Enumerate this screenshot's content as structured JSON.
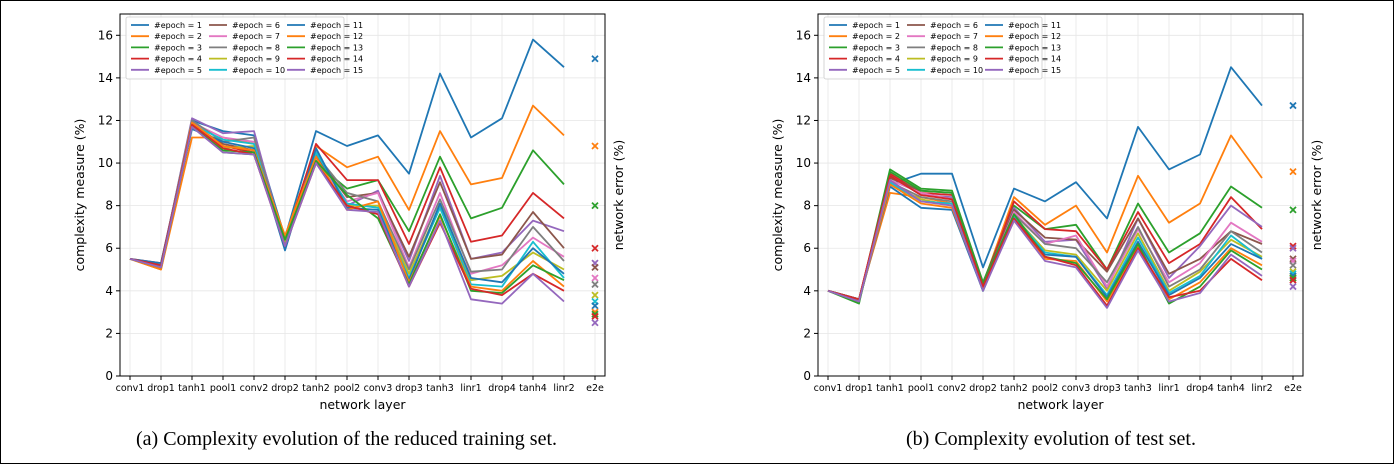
{
  "captions": [
    "(a)  Complexity evolution of the reduced training set.",
    "(b)  Complexity evolution of test set."
  ],
  "chart_data": [
    {
      "type": "line",
      "xlabel": "network layer",
      "ylabel": "complexity measure (%)",
      "y2label": "network error (%)",
      "ylim": [
        0,
        17
      ],
      "yticks": [
        0,
        2,
        4,
        6,
        8,
        10,
        12,
        14,
        16
      ],
      "categories": [
        "conv1",
        "drop1",
        "tanh1",
        "pool1",
        "conv2",
        "drop2",
        "tanh2",
        "pool2",
        "conv3",
        "drop3",
        "tanh3",
        "linr1",
        "drop4",
        "tanh4",
        "linr2",
        "e2e"
      ],
      "grid": true,
      "legend": "top-left, 3 columns",
      "series": [
        {
          "name": "#epoch = 1",
          "color": "#1f77b4",
          "values": [
            5.5,
            5.2,
            12.0,
            11.5,
            11.3,
            6.5,
            11.5,
            10.8,
            11.3,
            9.5,
            14.2,
            11.2,
            12.1,
            15.8,
            14.5,
            14.5
          ],
          "error": 14.9
        },
        {
          "name": "#epoch = 2",
          "color": "#ff7f0e",
          "values": [
            5.5,
            5.0,
            11.2,
            11.2,
            10.9,
            6.5,
            10.8,
            9.8,
            10.3,
            7.8,
            11.5,
            9.0,
            9.3,
            12.7,
            11.3,
            11.3
          ],
          "error": 10.8
        },
        {
          "name": "#epoch = 3",
          "color": "#2ca02c",
          "values": [
            5.5,
            5.1,
            11.8,
            10.5,
            10.4,
            6.2,
            10.0,
            8.8,
            9.2,
            6.8,
            10.3,
            7.4,
            7.9,
            10.6,
            9.0,
            9.1
          ],
          "error": 8.0
        },
        {
          "name": "#epoch = 4",
          "color": "#d62728",
          "values": [
            5.5,
            5.3,
            11.9,
            10.8,
            10.5,
            6.3,
            10.9,
            9.2,
            9.2,
            6.2,
            9.8,
            6.3,
            6.6,
            8.6,
            7.4,
            7.7
          ],
          "error": 6.0
        },
        {
          "name": "#epoch = 5",
          "color": "#9467bd",
          "values": [
            5.5,
            5.2,
            12.1,
            11.4,
            11.5,
            6.2,
            10.6,
            8.0,
            8.7,
            5.4,
            9.4,
            5.5,
            5.8,
            7.3,
            6.8,
            6.9
          ],
          "error": 5.3
        },
        {
          "name": "#epoch = 6",
          "color": "#8c564b",
          "values": [
            5.5,
            5.2,
            11.8,
            10.9,
            10.6,
            6.2,
            10.3,
            8.4,
            8.6,
            5.6,
            9.1,
            5.5,
            5.7,
            7.7,
            6.0,
            6.4
          ],
          "error": 5.1
        },
        {
          "name": "#epoch = 7",
          "color": "#e377c2",
          "values": [
            5.5,
            5.1,
            11.9,
            11.2,
            11.0,
            6.2,
            10.2,
            8.2,
            8.6,
            5.1,
            8.6,
            4.8,
            5.2,
            6.5,
            5.6,
            5.8
          ],
          "error": 4.6
        },
        {
          "name": "#epoch = 8",
          "color": "#7f7f7f",
          "values": [
            5.5,
            5.2,
            12.0,
            11.0,
            11.2,
            6.3,
            10.4,
            8.6,
            8.2,
            5.0,
            8.3,
            4.9,
            5.0,
            7.0,
            5.4,
            5.6
          ],
          "error": 4.3
        },
        {
          "name": "#epoch = 9",
          "color": "#bcbd22",
          "values": [
            5.5,
            5.1,
            11.7,
            10.7,
            10.8,
            6.2,
            10.1,
            8.0,
            8.0,
            4.8,
            8.0,
            4.5,
            4.7,
            5.8,
            5.0,
            5.2
          ],
          "error": 3.8
        },
        {
          "name": "#epoch = 10",
          "color": "#17becf",
          "values": [
            5.5,
            5.2,
            11.8,
            11.1,
            10.9,
            6.1,
            10.5,
            8.1,
            7.9,
            4.6,
            7.9,
            4.3,
            4.2,
            6.3,
            4.6,
            4.8
          ],
          "error": 3.5
        },
        {
          "name": "#epoch = 11",
          "color": "#1f77b4",
          "values": [
            5.5,
            5.3,
            11.6,
            11.0,
            10.7,
            5.9,
            10.7,
            7.9,
            7.8,
            4.5,
            8.1,
            4.6,
            4.4,
            6.0,
            4.8,
            4.7
          ],
          "error": 3.3
        },
        {
          "name": "#epoch = 12",
          "color": "#ff7f0e",
          "values": [
            5.5,
            5.0,
            11.9,
            10.8,
            10.6,
            6.6,
            10.3,
            7.8,
            8.2,
            4.4,
            7.5,
            4.2,
            4.0,
            5.4,
            4.2,
            4.4
          ],
          "error": 3.0
        },
        {
          "name": "#epoch = 13",
          "color": "#2ca02c",
          "values": [
            5.5,
            5.1,
            11.7,
            10.6,
            10.5,
            6.4,
            10.1,
            8.5,
            7.4,
            4.3,
            7.6,
            4.0,
            3.9,
            5.2,
            4.5,
            4.6
          ],
          "error": 2.9
        },
        {
          "name": "#epoch = 14",
          "color": "#d62728",
          "values": [
            5.5,
            5.2,
            11.8,
            10.7,
            10.4,
            6.1,
            10.0,
            8.0,
            7.6,
            4.2,
            7.2,
            4.1,
            3.8,
            4.8,
            4.0,
            4.1
          ],
          "error": 2.8
        },
        {
          "name": "#epoch = 15",
          "color": "#9467bd",
          "values": [
            5.5,
            5.1,
            11.7,
            10.5,
            10.4,
            6.1,
            10.0,
            7.8,
            7.7,
            4.2,
            7.3,
            3.6,
            3.4,
            4.8,
            3.5,
            3.7
          ],
          "error": 2.5
        }
      ]
    },
    {
      "type": "line",
      "xlabel": "network layer",
      "ylabel": "complexity measure (%)",
      "y2label": "network error (%)",
      "ylim": [
        0,
        17
      ],
      "yticks": [
        0,
        2,
        4,
        6,
        8,
        10,
        12,
        14,
        16
      ],
      "categories": [
        "conv1",
        "drop1",
        "tanh1",
        "pool1",
        "conv2",
        "drop2",
        "tanh2",
        "pool2",
        "conv3",
        "drop3",
        "tanh3",
        "linr1",
        "drop4",
        "tanh4",
        "linr2",
        "e2e"
      ],
      "grid": true,
      "legend": "top-left, 3 columns",
      "series": [
        {
          "name": "#epoch = 1",
          "color": "#1f77b4",
          "values": [
            4.0,
            3.6,
            9.0,
            9.5,
            9.5,
            5.1,
            8.8,
            8.2,
            9.1,
            7.4,
            11.7,
            9.7,
            10.4,
            14.5,
            12.7,
            12.8
          ],
          "error": 12.7
        },
        {
          "name": "#epoch = 2",
          "color": "#ff7f0e",
          "values": [
            4.0,
            3.6,
            8.6,
            8.4,
            8.1,
            4.3,
            8.4,
            7.1,
            8.0,
            5.8,
            9.4,
            7.2,
            8.1,
            11.3,
            9.3,
            10.3
          ],
          "error": 9.6
        },
        {
          "name": "#epoch = 3",
          "color": "#2ca02c",
          "values": [
            4.0,
            3.5,
            9.7,
            8.8,
            8.7,
            4.4,
            8.0,
            6.9,
            7.1,
            5.0,
            8.1,
            5.8,
            6.7,
            8.9,
            7.9,
            8.7
          ],
          "error": 7.8
        },
        {
          "name": "#epoch = 4",
          "color": "#d62728",
          "values": [
            4.0,
            3.6,
            9.5,
            8.6,
            8.5,
            4.2,
            8.2,
            6.9,
            6.8,
            5.0,
            7.7,
            5.3,
            6.2,
            8.4,
            6.9,
            7.4
          ],
          "error": 6.1
        },
        {
          "name": "#epoch = 5",
          "color": "#9467bd",
          "values": [
            4.0,
            3.5,
            9.4,
            8.5,
            8.4,
            4.1,
            7.9,
            6.3,
            6.4,
            4.1,
            7.4,
            4.6,
            6.1,
            8.0,
            7.0,
            7.4
          ],
          "error": 6.0
        },
        {
          "name": "#epoch = 6",
          "color": "#8c564b",
          "values": [
            4.0,
            3.6,
            9.3,
            8.7,
            8.6,
            4.3,
            7.8,
            6.5,
            6.4,
            4.9,
            7.4,
            4.8,
            5.5,
            6.8,
            6.2,
            6.4
          ],
          "error": 5.5
        },
        {
          "name": "#epoch = 7",
          "color": "#e377c2",
          "values": [
            4.0,
            3.5,
            9.2,
            8.6,
            8.3,
            4.2,
            7.7,
            6.2,
            6.6,
            4.2,
            6.9,
            4.4,
            5.3,
            7.2,
            6.3,
            6.5
          ],
          "error": 5.4
        },
        {
          "name": "#epoch = 8",
          "color": "#7f7f7f",
          "values": [
            4.0,
            3.6,
            9.1,
            8.4,
            8.2,
            4.1,
            7.6,
            6.2,
            6.0,
            4.4,
            7.0,
            4.2,
            5.0,
            6.8,
            5.8,
            6.1
          ],
          "error": 5.2
        },
        {
          "name": "#epoch = 9",
          "color": "#bcbd22",
          "values": [
            4.0,
            3.5,
            9.0,
            8.3,
            8.0,
            4.0,
            7.5,
            5.9,
            5.7,
            4.0,
            6.7,
            4.0,
            4.9,
            6.4,
            5.6,
            5.9
          ],
          "error": 4.9
        },
        {
          "name": "#epoch = 10",
          "color": "#17becf",
          "values": [
            4.0,
            3.6,
            9.1,
            8.2,
            8.1,
            4.0,
            7.5,
            5.8,
            5.6,
            3.8,
            6.5,
            3.9,
            4.7,
            6.6,
            5.5,
            5.8
          ],
          "error": 4.8
        },
        {
          "name": "#epoch = 11",
          "color": "#1f77b4",
          "values": [
            4.0,
            3.5,
            8.9,
            7.9,
            7.8,
            4.0,
            7.4,
            5.7,
            5.6,
            3.7,
            6.3,
            3.8,
            4.6,
            6.2,
            5.5,
            6.0
          ],
          "error": 4.7
        },
        {
          "name": "#epoch = 12",
          "color": "#ff7f0e",
          "values": [
            4.0,
            3.5,
            9.0,
            8.1,
            7.9,
            4.1,
            7.3,
            5.5,
            5.4,
            3.5,
            6.1,
            3.6,
            4.4,
            6.0,
            5.2,
            5.6
          ],
          "error": 4.6
        },
        {
          "name": "#epoch = 13",
          "color": "#2ca02c",
          "values": [
            4.0,
            3.4,
            9.6,
            8.7,
            8.6,
            4.3,
            7.6,
            5.6,
            5.3,
            3.6,
            6.2,
            3.4,
            4.2,
            5.9,
            5.0,
            5.3
          ],
          "error": 4.6
        },
        {
          "name": "#epoch = 14",
          "color": "#d62728",
          "values": [
            4.0,
            3.6,
            9.4,
            8.5,
            8.3,
            4.2,
            7.4,
            5.6,
            5.2,
            3.3,
            6.0,
            3.7,
            4.0,
            5.5,
            4.5,
            4.8
          ],
          "error": 4.5
        },
        {
          "name": "#epoch = 15",
          "color": "#9467bd",
          "values": [
            4.0,
            3.5,
            9.2,
            8.2,
            8.0,
            4.0,
            7.3,
            5.4,
            5.1,
            3.2,
            5.9,
            3.5,
            3.9,
            5.7,
            4.7,
            5.0
          ],
          "error": 4.2
        }
      ]
    }
  ]
}
